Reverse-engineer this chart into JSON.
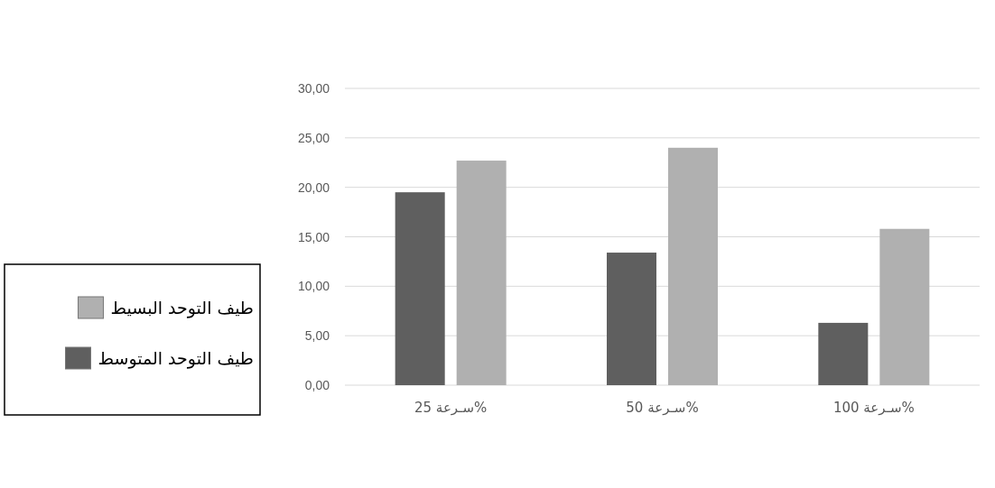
{
  "chart_data": {
    "type": "bar",
    "categories": [
      "%سـرعة 25",
      "%سـرعة 50",
      "%سـرعة 100"
    ],
    "series": [
      {
        "name": "طيف التوحد المتوسط",
        "color": "#5f5f5f",
        "values": [
          19.5,
          13.4,
          6.3
        ]
      },
      {
        "name": "طيف التوحد البسيط",
        "color": "#b0b0b0",
        "values": [
          22.7,
          24.0,
          15.8
        ]
      }
    ],
    "ylim": [
      0,
      30
    ],
    "yticks": [
      {
        "value": 0,
        "label": "0,00"
      },
      {
        "value": 5,
        "label": "5,00"
      },
      {
        "value": 10,
        "label": "10,00"
      },
      {
        "value": 15,
        "label": "15,00"
      },
      {
        "value": 20,
        "label": "20,00"
      },
      {
        "value": 25,
        "label": "25,00"
      },
      {
        "value": 30,
        "label": "30,00"
      }
    ],
    "grid": "y",
    "legend": "left"
  }
}
